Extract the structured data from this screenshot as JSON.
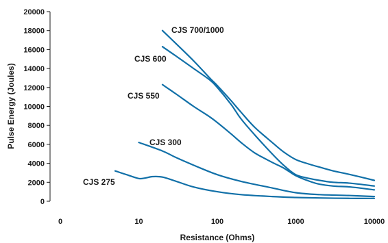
{
  "chart_data": {
    "type": "line",
    "xlabel": "Resistance (Ohms)",
    "ylabel": "Pulse Energy (Joules)",
    "x_scale": "log",
    "x_ticks": [
      "0",
      "10",
      "100",
      "1000",
      "10000"
    ],
    "y_ticks": [
      "0",
      "2000",
      "4000",
      "6000",
      "8000",
      "10000",
      "12000",
      "14000",
      "16000",
      "18000",
      "20000"
    ],
    "ylim": [
      0,
      20000
    ],
    "grid": false,
    "line_color": "#1170a8",
    "series": [
      {
        "name": "CJS 700/1000",
        "x": [
          20,
          30,
          50,
          80,
          100,
          150,
          200,
          300,
          500,
          700,
          1000,
          1500,
          2000,
          3000,
          5000,
          10000
        ],
        "y": [
          18000,
          16600,
          14800,
          13000,
          12200,
          10600,
          9400,
          7800,
          6200,
          5200,
          4400,
          3900,
          3600,
          3200,
          2800,
          2200
        ]
      },
      {
        "name": "CJS 600",
        "x": [
          20,
          30,
          50,
          80,
          100,
          150,
          200,
          300,
          500,
          700,
          1000,
          1500,
          2000,
          3000,
          5000,
          10000
        ],
        "y": [
          16300,
          15300,
          14000,
          12800,
          12000,
          10200,
          8700,
          7000,
          5000,
          3800,
          2800,
          2400,
          2200,
          2000,
          1900,
          1600
        ]
      },
      {
        "name": "CJS 550",
        "x": [
          20,
          30,
          50,
          80,
          100,
          150,
          200,
          300,
          500,
          700,
          1000,
          1500,
          2000,
          3000,
          5000,
          10000
        ],
        "y": [
          12300,
          11300,
          10000,
          8900,
          8300,
          7100,
          6200,
          5100,
          4100,
          3500,
          2700,
          2100,
          1800,
          1600,
          1500,
          1200
        ]
      },
      {
        "name": "CJS 300",
        "x": [
          10,
          20,
          30,
          50,
          100,
          200,
          500,
          1000,
          2000,
          5000,
          10000
        ],
        "y": [
          6200,
          5300,
          4600,
          3800,
          2800,
          2100,
          1400,
          900,
          700,
          600,
          500
        ]
      },
      {
        "name": "CJS 275",
        "x": [
          5,
          7,
          10,
          12,
          15,
          20,
          30,
          50,
          100,
          200,
          500,
          1000,
          2000,
          5000,
          10000
        ],
        "y": [
          3200,
          2800,
          2400,
          2450,
          2600,
          2550,
          2100,
          1500,
          1000,
          700,
          500,
          400,
          350,
          300,
          300
        ]
      }
    ]
  }
}
